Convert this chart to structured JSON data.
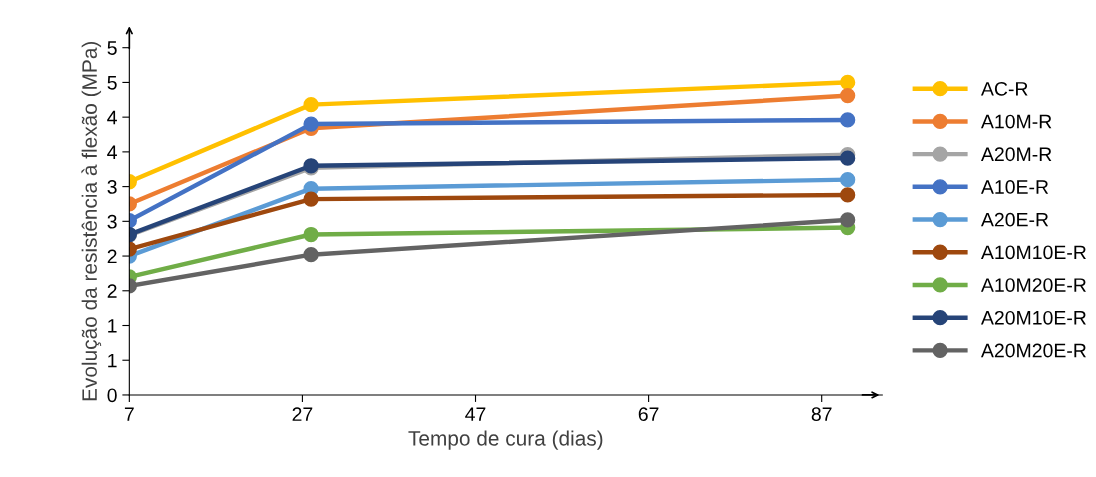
{
  "chart_data": {
    "type": "line",
    "xlabel": "Tempo de cura (dias)",
    "ylabel": "Evolução da resistência à flexão (MPa)",
    "x": [
      7,
      28,
      90
    ],
    "xlim": [
      7,
      94
    ],
    "xticks": [
      7,
      27,
      47,
      67,
      87
    ],
    "ylim": [
      0,
      5
    ],
    "yticks": [
      0,
      {
        "value": 0.5,
        "label": "1"
      },
      1,
      {
        "value": 1.5,
        "label": "2"
      },
      2,
      {
        "value": 2.5,
        "label": "3"
      },
      3,
      {
        "value": 3.5,
        "label": "4"
      },
      4,
      {
        "value": 4.5,
        "label": "5"
      },
      5
    ],
    "marker": "circle",
    "line_style": "solid",
    "grid": false,
    "legend": "right",
    "series": [
      {
        "name": "AC-R",
        "color": "#ffc000",
        "values": [
          3.07,
          4.18,
          4.5
        ]
      },
      {
        "name": "A10M-R",
        "color": "#ed7d31",
        "values": [
          2.75,
          3.84,
          4.31
        ]
      },
      {
        "name": "A20M-R",
        "color": "#a5a5a5",
        "values": [
          2.3,
          3.27,
          3.46
        ]
      },
      {
        "name": "A10E-R",
        "color": "#4472c4",
        "values": [
          2.51,
          3.9,
          3.96
        ]
      },
      {
        "name": "A20E-R",
        "color": "#5b9bd5",
        "values": [
          2.0,
          2.97,
          3.1
        ]
      },
      {
        "name": "A10M10E-R",
        "color": "#9e480e",
        "values": [
          2.1,
          2.82,
          2.88
        ]
      },
      {
        "name": "A10M20E-R",
        "color": "#70ad47",
        "values": [
          1.7,
          2.31,
          2.41
        ]
      },
      {
        "name": "A20M10E-R",
        "color": "#264478",
        "values": [
          2.31,
          3.3,
          3.41
        ]
      },
      {
        "name": "A20M20E-R",
        "color": "#636363",
        "values": [
          1.57,
          2.02,
          2.52
        ]
      }
    ]
  }
}
